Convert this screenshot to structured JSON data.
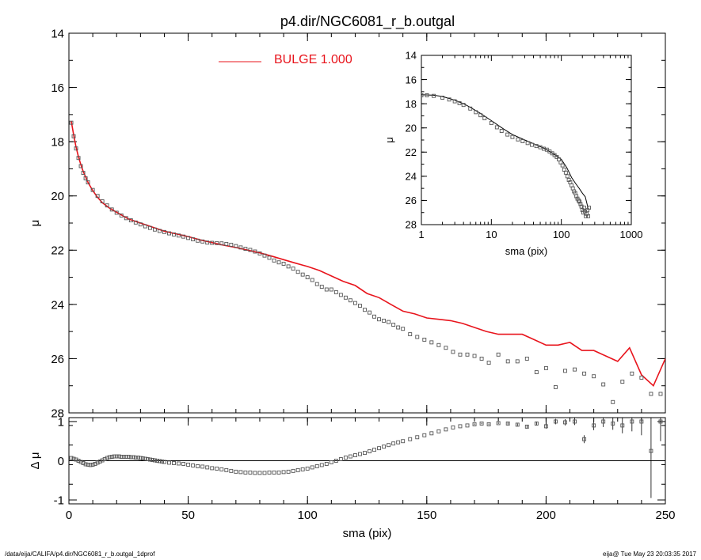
{
  "title": "p4.dir/NGC6081_r_b.outgal",
  "footer": {
    "left": "/data/eija/CALIFA/p4.dir/NGC6081_r_b.outgal_1dprof",
    "right": "eija@  Tue May 23 20:03:35 2017"
  },
  "colors": {
    "model": "#e8141c",
    "data": "#000000",
    "points": "#555555"
  },
  "chart_data": [
    {
      "id": "main",
      "type": "scatter",
      "xlabel": "sma (pix)",
      "ylabel": "μ",
      "xlim": [
        0,
        250
      ],
      "ylim": [
        28,
        14
      ],
      "yreversed": true,
      "xticks": [
        0,
        50,
        100,
        150,
        200,
        250
      ],
      "yticks": [
        14,
        16,
        18,
        20,
        22,
        24,
        26,
        28
      ],
      "legend": {
        "label": "BULGE  1.000",
        "placement": "top-center"
      },
      "series": [
        {
          "name": "BULGE  1.000",
          "type": "line",
          "x": [
            1,
            2,
            3,
            4,
            5,
            6,
            7,
            8,
            10,
            12,
            14,
            17,
            20,
            25,
            30,
            35,
            40,
            45,
            50,
            55,
            60,
            65,
            70,
            75,
            80,
            85,
            90,
            95,
            100,
            105,
            110,
            115,
            120,
            125,
            130,
            135,
            140,
            145,
            150,
            155,
            160,
            165,
            170,
            175,
            180,
            185,
            190,
            195,
            200,
            205,
            210,
            215,
            220,
            225,
            230,
            235,
            240,
            245,
            250
          ],
          "y": [
            17.25,
            17.75,
            18.2,
            18.55,
            18.85,
            19.1,
            19.3,
            19.5,
            19.8,
            20.05,
            20.25,
            20.45,
            20.6,
            20.85,
            21.0,
            21.15,
            21.3,
            21.4,
            21.5,
            21.62,
            21.72,
            21.82,
            21.9,
            22.0,
            22.1,
            22.22,
            22.35,
            22.48,
            22.6,
            22.75,
            22.95,
            23.15,
            23.3,
            23.6,
            23.75,
            24.0,
            24.25,
            24.35,
            24.5,
            24.55,
            24.6,
            24.7,
            24.85,
            25.0,
            25.1,
            25.1,
            25.1,
            25.3,
            25.5,
            25.5,
            25.4,
            25.7,
            25.7,
            25.9,
            26.1,
            25.6,
            26.6,
            27.0,
            26.0
          ]
        },
        {
          "name": "",
          "type": "scatter",
          "x": [
            1,
            2,
            3,
            4,
            5,
            6,
            7,
            8,
            10,
            12,
            14,
            16,
            18,
            20,
            22,
            24,
            26,
            28,
            30,
            32,
            34,
            36,
            38,
            40,
            42,
            44,
            46,
            48,
            50,
            52,
            54,
            56,
            58,
            60,
            62,
            64,
            66,
            68,
            70,
            72,
            74,
            76,
            78,
            80,
            82,
            84,
            86,
            88,
            90,
            92,
            94,
            96,
            98,
            100,
            102,
            104,
            106,
            108,
            110,
            112,
            114,
            116,
            118,
            120,
            122,
            124,
            126,
            128,
            130,
            132,
            134,
            136,
            138,
            140,
            143,
            146,
            149,
            152,
            155,
            158,
            161,
            164,
            167,
            170,
            173,
            176,
            180,
            184,
            188,
            192,
            196,
            200,
            204,
            208,
            212,
            216,
            220,
            224,
            228,
            232,
            236,
            240,
            244,
            248
          ],
          "y": [
            17.3,
            17.8,
            18.25,
            18.6,
            18.9,
            19.15,
            19.35,
            19.5,
            19.78,
            20.0,
            20.2,
            20.35,
            20.5,
            20.62,
            20.72,
            20.82,
            20.9,
            20.98,
            21.05,
            21.12,
            21.18,
            21.24,
            21.29,
            21.33,
            21.38,
            21.42,
            21.46,
            21.5,
            21.55,
            21.6,
            21.65,
            21.68,
            21.72,
            21.73,
            21.74,
            21.75,
            21.77,
            21.8,
            21.85,
            21.9,
            21.95,
            21.99,
            22.05,
            22.12,
            22.2,
            22.28,
            22.38,
            22.45,
            22.5,
            22.6,
            22.68,
            22.8,
            22.9,
            23.0,
            23.1,
            23.25,
            23.35,
            23.45,
            23.45,
            23.55,
            23.65,
            23.75,
            23.85,
            23.95,
            24.05,
            24.2,
            24.3,
            24.45,
            24.55,
            24.6,
            24.65,
            24.75,
            24.85,
            24.9,
            25.1,
            25.2,
            25.3,
            25.4,
            25.5,
            25.6,
            25.75,
            25.85,
            25.85,
            25.9,
            26.0,
            26.15,
            25.85,
            26.1,
            26.1,
            26.0,
            26.5,
            26.35,
            27.05,
            26.45,
            26.4,
            26.55,
            26.65,
            26.95,
            27.6,
            26.85,
            26.55,
            26.7,
            27.3,
            27.3
          ]
        }
      ]
    },
    {
      "id": "residual",
      "type": "scatter",
      "xlabel": "sma (pix)",
      "ylabel": "Δ μ",
      "xlim": [
        0,
        250
      ],
      "ylim": [
        -1.1,
        1.1
      ],
      "xticks": [
        0,
        50,
        100,
        150,
        200,
        250
      ],
      "yticks": [
        -1,
        0,
        1
      ],
      "series": [
        {
          "name": "",
          "type": "scatter",
          "x": [
            1,
            2,
            3,
            4,
            5,
            6,
            7,
            8,
            9,
            10,
            11,
            12,
            13,
            14,
            15,
            16,
            17,
            18,
            19,
            20,
            21,
            22,
            23,
            24,
            25,
            26,
            27,
            28,
            29,
            30,
            31,
            32,
            33,
            34,
            35,
            36,
            37,
            38,
            39,
            40,
            42,
            44,
            46,
            48,
            50,
            52,
            54,
            56,
            58,
            60,
            62,
            64,
            66,
            68,
            70,
            72,
            74,
            76,
            78,
            80,
            82,
            84,
            86,
            88,
            90,
            92,
            94,
            96,
            98,
            100,
            102,
            104,
            106,
            108,
            110,
            112,
            114,
            116,
            118,
            120,
            122,
            124,
            126,
            128,
            130,
            132,
            134,
            136,
            138,
            140,
            143,
            146,
            149,
            152,
            155,
            158,
            161,
            164,
            167,
            170,
            173,
            176,
            180,
            184,
            188,
            192,
            196,
            200,
            204,
            208,
            212,
            216,
            220,
            224,
            228,
            232,
            236,
            240,
            244,
            248
          ],
          "y": [
            0.07,
            0.05,
            0.03,
            0.0,
            -0.03,
            -0.06,
            -0.09,
            -0.1,
            -0.11,
            -0.1,
            -0.08,
            -0.05,
            -0.02,
            0.01,
            0.04,
            0.07,
            0.09,
            0.1,
            0.11,
            0.11,
            0.11,
            0.1,
            0.1,
            0.1,
            0.1,
            0.09,
            0.09,
            0.08,
            0.08,
            0.07,
            0.06,
            0.05,
            0.04,
            0.03,
            0.02,
            0.01,
            0.0,
            -0.01,
            -0.02,
            -0.03,
            -0.05,
            -0.06,
            -0.07,
            -0.08,
            -0.1,
            -0.12,
            -0.14,
            -0.15,
            -0.17,
            -0.19,
            -0.2,
            -0.22,
            -0.24,
            -0.26,
            -0.28,
            -0.29,
            -0.3,
            -0.3,
            -0.31,
            -0.31,
            -0.31,
            -0.3,
            -0.3,
            -0.3,
            -0.29,
            -0.28,
            -0.26,
            -0.24,
            -0.22,
            -0.2,
            -0.17,
            -0.14,
            -0.11,
            -0.08,
            -0.04,
            0.0,
            0.04,
            0.08,
            0.11,
            0.14,
            0.17,
            0.2,
            0.24,
            0.28,
            0.32,
            0.36,
            0.4,
            0.44,
            0.47,
            0.5,
            0.55,
            0.6,
            0.65,
            0.7,
            0.75,
            0.8,
            0.85,
            0.88,
            0.9,
            0.93,
            0.95,
            0.93,
            0.96,
            0.95,
            0.92,
            0.87,
            0.95,
            0.88,
            1.0,
            0.98,
            1.0,
            0.55,
            0.9,
            1.0,
            0.95,
            0.9,
            1.0,
            1.0,
            0.25,
            1.0
          ],
          "err": [
            0,
            0,
            0,
            0,
            0,
            0,
            0,
            0,
            0,
            0,
            0,
            0,
            0,
            0,
            0,
            0,
            0,
            0,
            0,
            0,
            0,
            0,
            0,
            0,
            0,
            0,
            0,
            0,
            0,
            0,
            0,
            0,
            0,
            0,
            0,
            0,
            0,
            0,
            0,
            0,
            0,
            0,
            0,
            0,
            0,
            0,
            0,
            0,
            0,
            0,
            0,
            0,
            0,
            0,
            0,
            0,
            0,
            0,
            0,
            0,
            0,
            0,
            0,
            0,
            0,
            0,
            0,
            0,
            0,
            0,
            0,
            0,
            0,
            0,
            0,
            0,
            0,
            0,
            0,
            0,
            0,
            0,
            0,
            0,
            0,
            0,
            0,
            0,
            0,
            0,
            0,
            0,
            0,
            0,
            0,
            0,
            0,
            0,
            0,
            0.02,
            0.02,
            0.02,
            0.02,
            0.03,
            0.03,
            0.04,
            0.05,
            0.06,
            0.07,
            0.08,
            0.09,
            0.1,
            0.12,
            0.14,
            0.16,
            0.2,
            0.25,
            0.35,
            1.2,
            0.5
          ]
        }
      ]
    },
    {
      "id": "inset",
      "type": "scatter",
      "xlabel": "sma (pix)",
      "ylabel": "μ",
      "xscale": "log",
      "xlim": [
        1,
        1000
      ],
      "ylim": [
        28,
        14
      ],
      "yreversed": true,
      "xticks": [
        1,
        10,
        100,
        1000
      ],
      "xticklabels": [
        "1",
        "10",
        "100",
        "1000"
      ],
      "yticks": [
        14,
        16,
        18,
        20,
        22,
        24,
        26,
        28
      ],
      "series": [
        {
          "name": "",
          "type": "line",
          "x": [
            1,
            1.5,
            2,
            3,
            4,
            5,
            7,
            10,
            15,
            20,
            30,
            40,
            50,
            60,
            70,
            80,
            90,
            100,
            120,
            140,
            160,
            180,
            200,
            220,
            240
          ],
          "y": [
            17.25,
            17.3,
            17.4,
            17.7,
            18.0,
            18.3,
            18.8,
            19.4,
            20.1,
            20.55,
            21.0,
            21.3,
            21.55,
            21.75,
            22.0,
            22.2,
            22.4,
            22.6,
            23.3,
            24.1,
            24.6,
            25.0,
            25.4,
            25.7,
            26.6
          ]
        },
        {
          "name": "",
          "type": "scatter",
          "x": [
            1,
            1.2,
            1.5,
            2,
            2.5,
            3,
            3.5,
            4,
            5,
            6,
            7,
            8,
            10,
            12,
            14,
            17,
            20,
            24,
            28,
            33,
            38,
            44,
            50,
            56,
            62,
            68,
            74,
            80,
            86,
            92,
            98,
            104,
            110,
            116,
            122,
            128,
            134,
            140,
            146,
            152,
            158,
            164,
            170,
            176,
            182,
            188,
            194,
            200,
            206,
            212,
            218,
            224,
            230,
            236,
            242,
            248
          ],
          "y": [
            17.3,
            17.3,
            17.35,
            17.5,
            17.65,
            17.8,
            17.95,
            18.1,
            18.4,
            18.7,
            18.95,
            19.2,
            19.6,
            19.95,
            20.25,
            20.55,
            20.75,
            20.95,
            21.1,
            21.25,
            21.4,
            21.5,
            21.6,
            21.72,
            21.8,
            21.95,
            22.1,
            22.25,
            22.4,
            22.6,
            22.85,
            23.1,
            23.45,
            23.7,
            24.0,
            24.3,
            24.5,
            24.75,
            25.0,
            25.25,
            25.4,
            25.65,
            25.85,
            26.0,
            26.1,
            26.3,
            26.5,
            26.8,
            27.0,
            26.6,
            26.9,
            27.3,
            27.1,
            26.8,
            27.3,
            26.6
          ]
        }
      ]
    }
  ]
}
